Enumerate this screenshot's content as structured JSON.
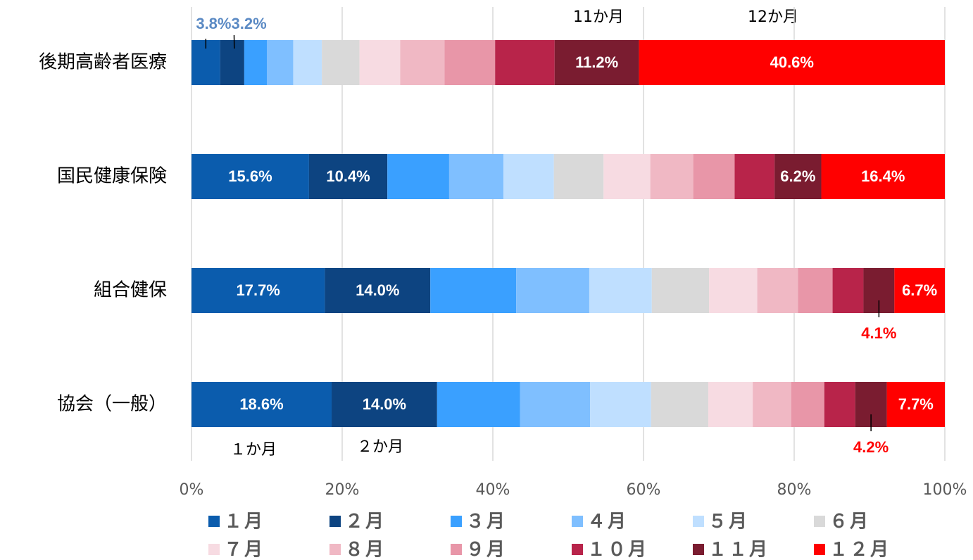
{
  "chart_data": {
    "type": "stacked_bar_horizontal",
    "categories": [
      "後期高齢者医療",
      "国民健康保険",
      "組合健保",
      "協会（一般）"
    ],
    "series": [
      {
        "name": "１月",
        "color": "#0b5cad",
        "values": [
          3.8,
          15.6,
          17.7,
          18.6
        ],
        "value_labels": [
          "3.8%",
          "15.6%",
          "17.7%",
          "18.6%"
        ]
      },
      {
        "name": "２月",
        "color": "#0d4481",
        "values": [
          3.2,
          10.4,
          14.0,
          14.0
        ],
        "value_labels": [
          "3.2%",
          "10.4%",
          "14.0%",
          "14.0%"
        ]
      },
      {
        "name": "３月",
        "color": "#3aa0ff",
        "values": [
          3.0,
          8.2,
          11.4,
          11.0
        ]
      },
      {
        "name": "４月",
        "color": "#7fbfff",
        "values": [
          3.5,
          7.2,
          9.7,
          9.3
        ]
      },
      {
        "name": "５月",
        "color": "#bfdfff",
        "values": [
          3.8,
          6.7,
          8.3,
          8.1
        ]
      },
      {
        "name": "６月",
        "color": "#d9d9d9",
        "values": [
          5.0,
          6.6,
          7.6,
          7.6
        ]
      },
      {
        "name": "７月",
        "color": "#f7dbe2",
        "values": [
          5.4,
          6.2,
          6.4,
          5.9
        ]
      },
      {
        "name": "８月",
        "color": "#f0b8c4",
        "values": [
          5.9,
          5.7,
          5.4,
          5.1
        ]
      },
      {
        "name": "９月",
        "color": "#e896a8",
        "values": [
          6.7,
          5.5,
          4.6,
          4.4
        ]
      },
      {
        "name": "１０月",
        "color": "#b8244a",
        "values": [
          7.9,
          5.3,
          4.1,
          4.1
        ]
      },
      {
        "name": "１１月",
        "color": "#7a1c30",
        "values": [
          11.2,
          6.2,
          4.1,
          4.2
        ],
        "value_labels": [
          "11.2%",
          "6.2%",
          "4.1%",
          "4.2%"
        ]
      },
      {
        "name": "１２月",
        "color": "#ff0000",
        "values": [
          40.6,
          16.4,
          6.7,
          7.7
        ],
        "value_labels": [
          "40.6%",
          "16.4%",
          "6.7%",
          "7.7%"
        ]
      }
    ],
    "xlim": [
      0,
      100
    ],
    "xticks": [
      {
        "value": 0,
        "label": "0%"
      },
      {
        "value": 20,
        "label": "20%"
      },
      {
        "value": 40,
        "label": "40%"
      },
      {
        "value": 60,
        "label": "60%"
      },
      {
        "value": 80,
        "label": "80%"
      },
      {
        "value": 100,
        "label": "100%"
      }
    ],
    "grid": true,
    "legend": "bottom",
    "annotations": [
      "11か月",
      "12か月",
      "１か月",
      "２か月"
    ]
  }
}
